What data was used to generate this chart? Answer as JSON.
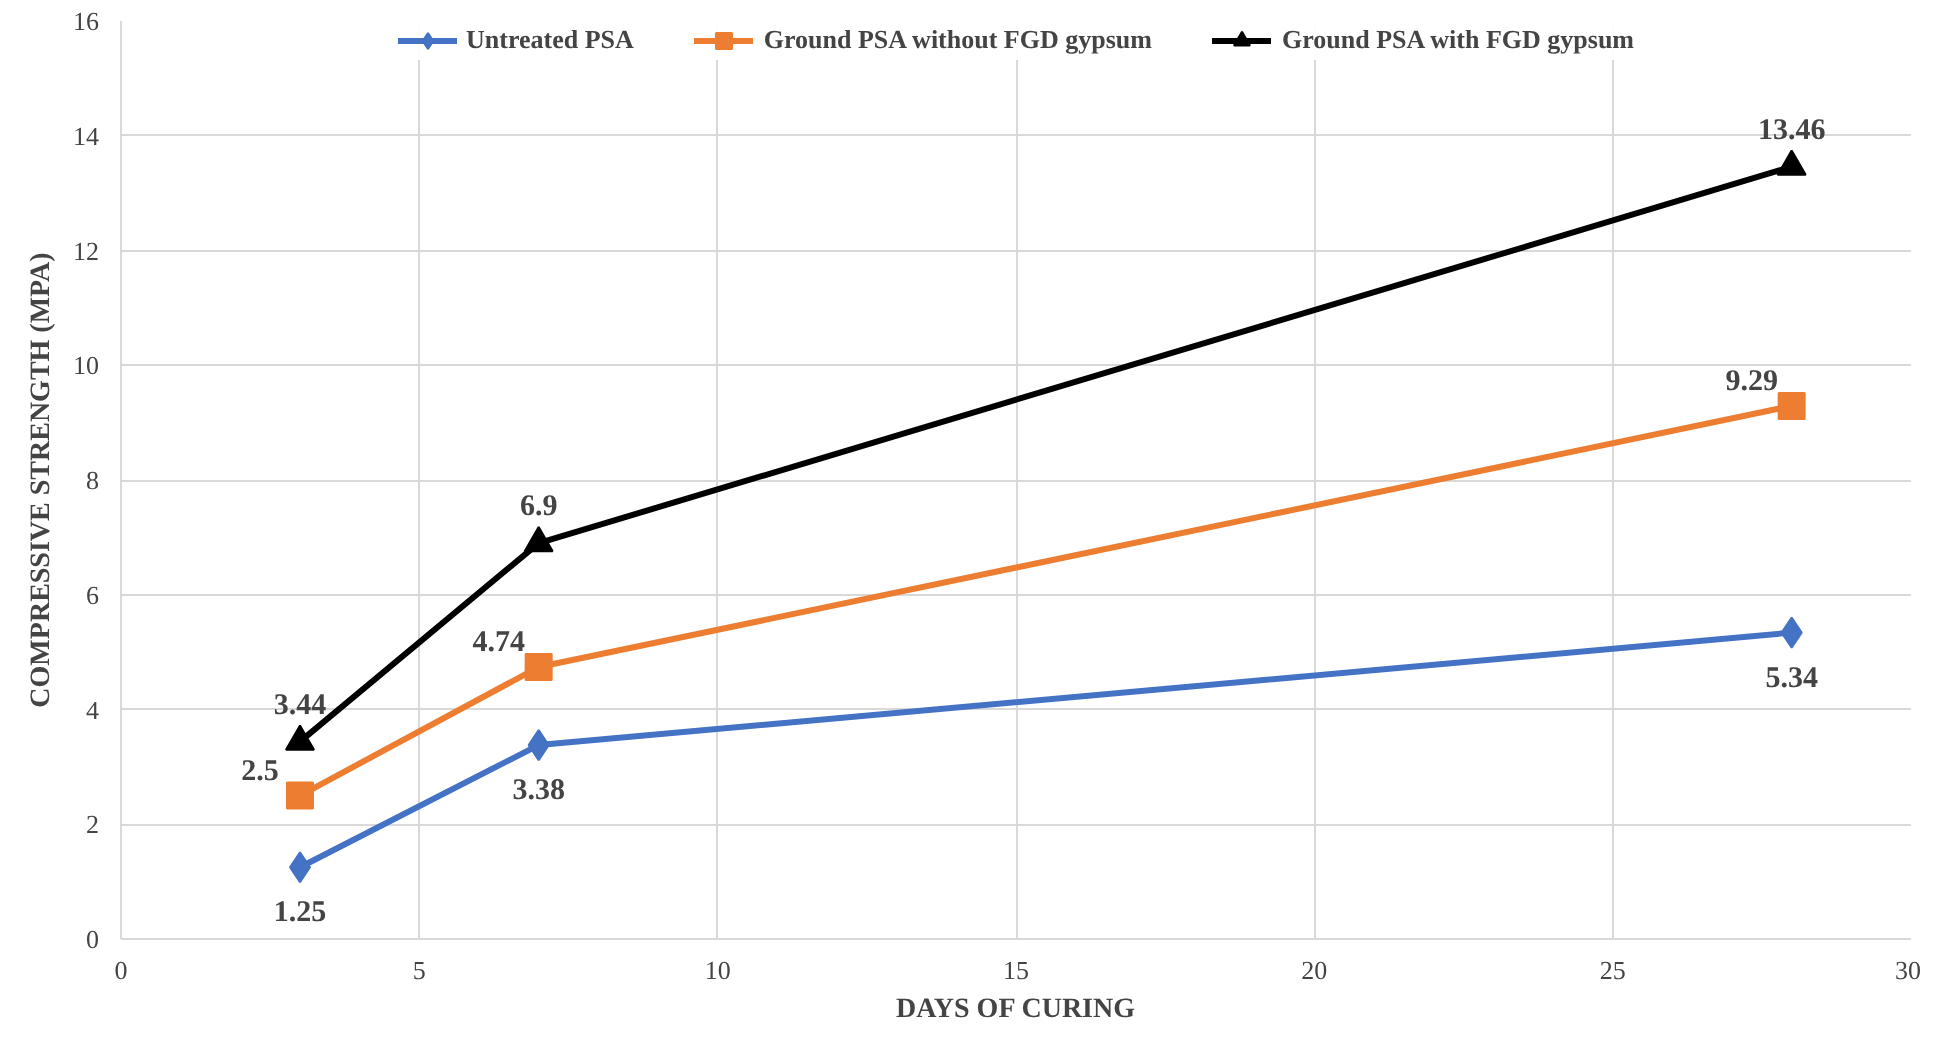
{
  "chart_data": {
    "type": "line",
    "xlabel": "DAYS OF CURING",
    "ylabel": "COMPRESSIVE STRENGTH (MPA)",
    "x": [
      3,
      7,
      28
    ],
    "series": [
      {
        "name": "Untreated PSA",
        "color": "#4472c4",
        "marker": "diamond",
        "values": [
          1.25,
          3.38,
          5.34
        ]
      },
      {
        "name": "Ground PSA without FGD gypsum",
        "color": "#ed7d31",
        "marker": "square",
        "values": [
          2.5,
          4.74,
          9.29
        ]
      },
      {
        "name": "Ground PSA with FGD gypsum",
        "color": "#000000",
        "marker": "triangle",
        "values": [
          3.44,
          6.9,
          13.46
        ]
      }
    ],
    "xlim": [
      0,
      30
    ],
    "xticks": [
      0,
      5,
      10,
      15,
      20,
      25,
      30
    ],
    "ylim": [
      0,
      16
    ],
    "yticks": [
      0,
      2,
      4,
      6,
      8,
      10,
      12,
      14,
      16
    ],
    "grid": true,
    "legend": "top",
    "data_labels": true
  }
}
